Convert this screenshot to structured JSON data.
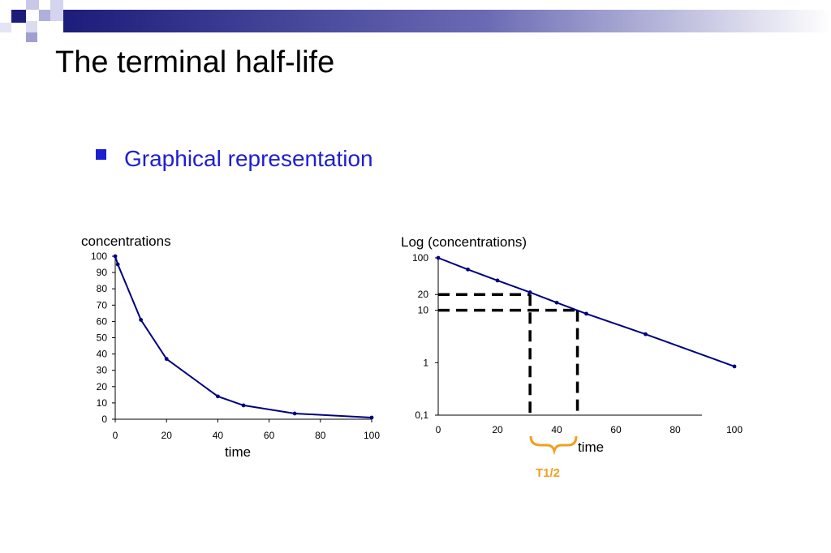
{
  "slide": {
    "title": "The terminal half-life",
    "bullet": "Graphical representation",
    "colors": {
      "banner": "#1c1c7a",
      "bullet": "#1e1ed2",
      "series": "#000080",
      "bracket": "#f0a020"
    }
  },
  "chart_data": [
    {
      "type": "line",
      "ylabel": "concentrations",
      "xlabel": "time",
      "x_ticks": [
        0,
        20,
        40,
        60,
        80,
        100
      ],
      "y_ticks": [
        0,
        10,
        20,
        30,
        40,
        50,
        60,
        70,
        80,
        90,
        100
      ],
      "xlim": [
        0,
        100
      ],
      "ylim": [
        0,
        100
      ],
      "series": [
        {
          "x": [
            0,
            1,
            10,
            20,
            40,
            50,
            70,
            100
          ],
          "y": [
            100,
            95,
            61,
            37,
            14,
            8.5,
            3.5,
            1
          ]
        }
      ]
    },
    {
      "type": "line",
      "yscale": "log",
      "ylabel": "Log (concentrations)",
      "xlabel": "time",
      "x_ticks": [
        0,
        20,
        40,
        60,
        80,
        100
      ],
      "y_ticks": [
        {
          "value": 100,
          "label": "100"
        },
        {
          "value": 20,
          "label": "20"
        },
        {
          "value": 10,
          "label": "10"
        },
        {
          "value": 1,
          "label": "1"
        },
        {
          "value": 0.1,
          "label": "0,1"
        }
      ],
      "xlim": [
        0,
        100
      ],
      "ylim": [
        0.1,
        100
      ],
      "series": [
        {
          "x": [
            0,
            10,
            20,
            31,
            40,
            50,
            70,
            100
          ],
          "y": [
            100,
            60,
            37,
            22,
            14,
            8.6,
            3.5,
            0.85
          ]
        }
      ],
      "annotations": {
        "dashed_levels": [
          {
            "y": 20,
            "x": 31
          },
          {
            "y": 10,
            "x": 47
          }
        ],
        "half_life_label": "T1/2"
      }
    }
  ]
}
